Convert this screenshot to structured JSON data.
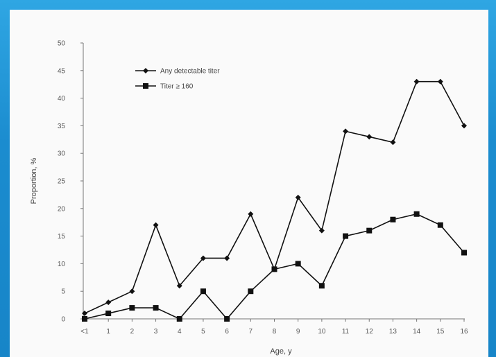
{
  "chart_data": {
    "type": "line",
    "xlabel": "Age, y",
    "ylabel": "Proportion, %",
    "ylim": [
      0,
      50
    ],
    "yticks": [
      0,
      5,
      10,
      15,
      20,
      25,
      30,
      35,
      40,
      45,
      50
    ],
    "categories": [
      "<1",
      "1",
      "2",
      "3",
      "4",
      "5",
      "6",
      "7",
      "8",
      "9",
      "10",
      "11",
      "12",
      "13",
      "14",
      "15",
      "16"
    ],
    "legend_position": "top-left",
    "grid": false,
    "series": [
      {
        "name": "Any detectable titer",
        "marker": "diamond",
        "color": "#111111",
        "values": [
          1,
          3,
          5,
          17,
          6,
          11,
          11,
          19,
          9,
          22,
          16,
          34,
          33,
          32,
          43,
          43,
          35
        ]
      },
      {
        "name": "Titer ≥ 160",
        "marker": "square",
        "color": "#111111",
        "values": [
          0,
          1,
          2,
          2,
          0,
          5,
          0,
          5,
          9,
          10,
          6,
          15,
          16,
          18,
          19,
          17,
          12
        ]
      }
    ]
  }
}
